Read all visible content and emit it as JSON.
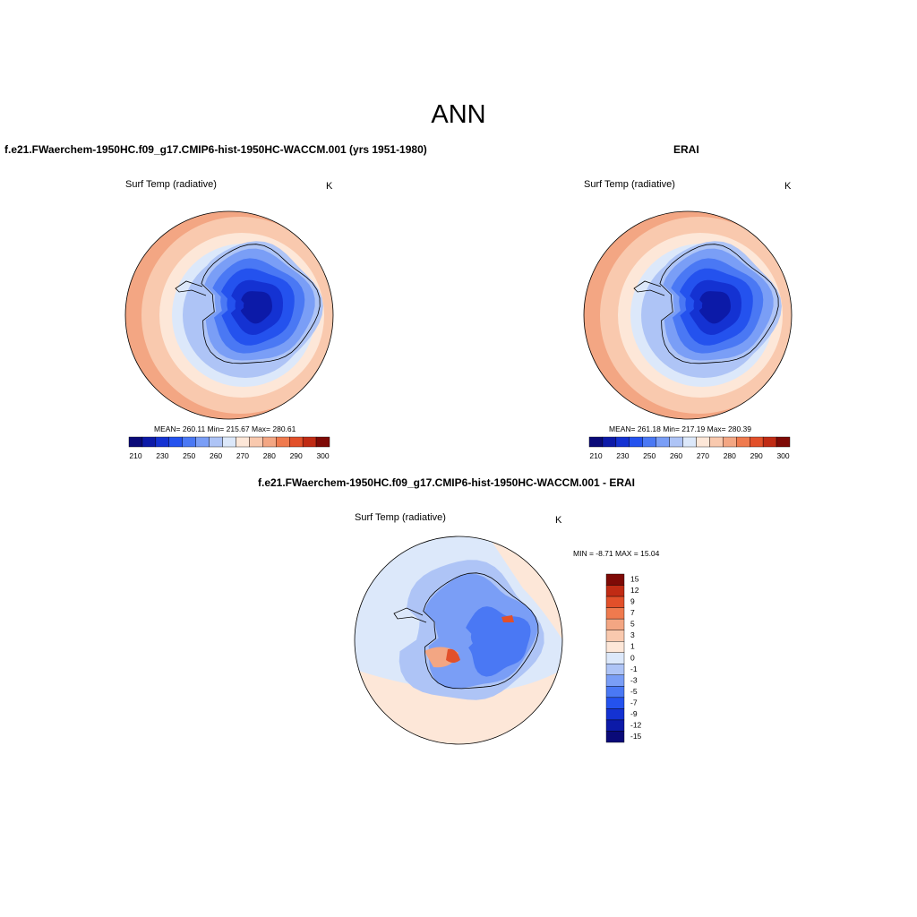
{
  "figure": {
    "title": "ANN",
    "units": "K",
    "variable": "Surf Temp (radiative)"
  },
  "panel_model": {
    "title": "f.e21.FWaerchem-1950HC.f09_g17.CMIP6-hist-1950HC-WACCM.001 (yrs 1951-1980)",
    "subtitle": "Surf Temp (radiative)",
    "units": "K",
    "stats": "MEAN= 260.11   Min= 215.67   Max= 280.61"
  },
  "panel_obs": {
    "title": "ERAI",
    "subtitle": "Surf Temp (radiative)",
    "units": "K",
    "stats": "MEAN= 261.18   Min= 217.19   Max= 280.39"
  },
  "panel_diff": {
    "title": "f.e21.FWaerchem-1950HC.f09_g17.CMIP6-hist-1950HC-WACCM.001 - ERAI",
    "subtitle": "Surf Temp (radiative)",
    "units": "K",
    "stats": "MIN =  -8.71 MAX =  15.04"
  },
  "abs_colorbar": {
    "colors": [
      "#0a0a78",
      "#0c1aa8",
      "#1432d2",
      "#2452ee",
      "#4a78f4",
      "#7a9ef6",
      "#aec4f6",
      "#dce8fa",
      "#fde7d8",
      "#f9c9ae",
      "#f3a683",
      "#ef7a4e",
      "#e2502a",
      "#c02b14",
      "#7e0a06"
    ],
    "labels": [
      "210",
      "230",
      "250",
      "260",
      "270",
      "280",
      "290",
      "300"
    ]
  },
  "diff_colorbar": {
    "colors": [
      "#0a0a78",
      "#0c1aa8",
      "#1432d2",
      "#2452ee",
      "#4a78f4",
      "#7a9ef6",
      "#aec4f6",
      "#dce8fa",
      "#fde7d8",
      "#f9c9ae",
      "#f3a683",
      "#ef7a4e",
      "#e2502a",
      "#c02b14",
      "#7e0a06"
    ],
    "labels": [
      "15",
      "12",
      "9",
      "7",
      "5",
      "3",
      "1",
      "0",
      "-1",
      "-3",
      "-5",
      "-7",
      "-9",
      "-12",
      "-15"
    ]
  },
  "map_colors": {
    "abs": [
      "#f3a683",
      "#f9c9ae",
      "#fde7d8",
      "#dce8fa",
      "#aec4f6",
      "#7a9ef6",
      "#4a78f4",
      "#2452ee",
      "#1432d2",
      "#0c1aa8"
    ],
    "diff_bg": "#dce8fa",
    "diff_pos": "#fde7d8",
    "diff_neg1": "#aec4f6",
    "diff_neg2": "#7a9ef6",
    "diff_neg3": "#4a78f4",
    "diff_warm": "#f3a683",
    "diff_hot": "#e2502a"
  }
}
